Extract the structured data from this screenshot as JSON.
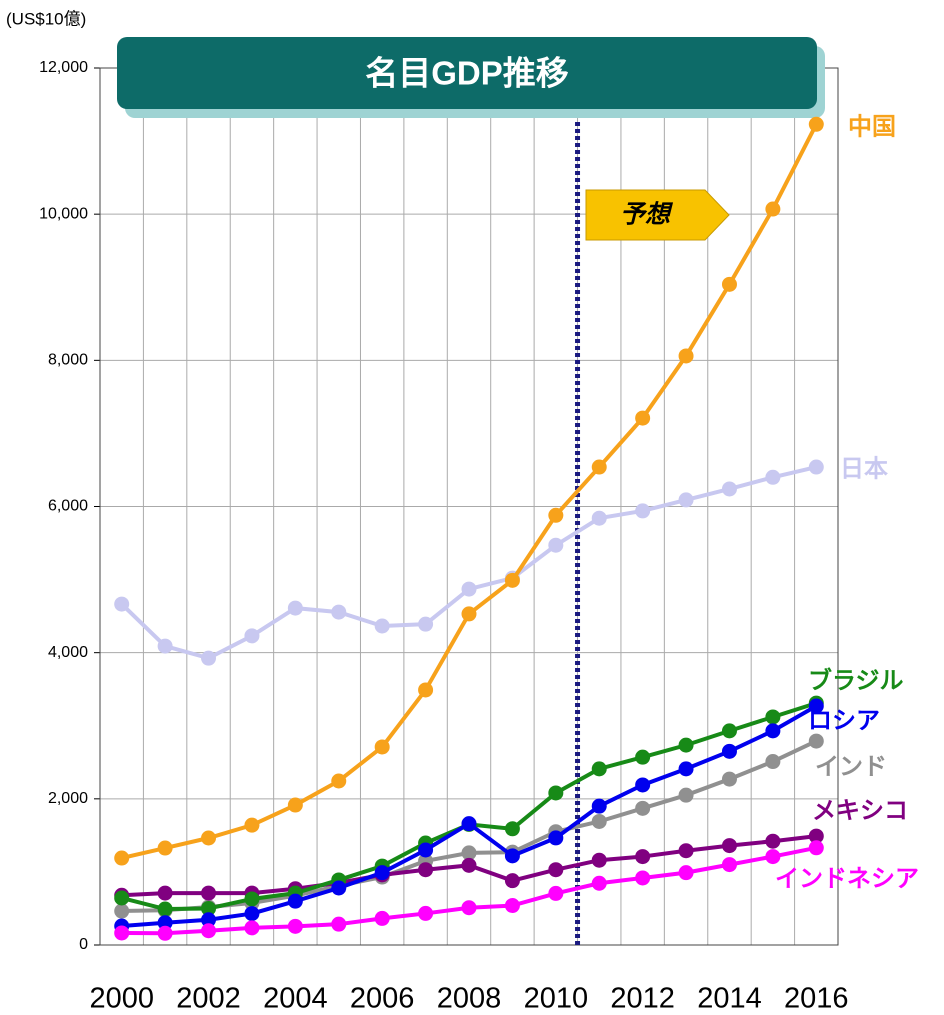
{
  "chart_data": {
    "type": "line",
    "title": "名目GDP推移",
    "y_axis_label": "(US$10億)",
    "annotation": "予想",
    "categories": [
      "2000",
      null,
      "2002",
      null,
      "2004",
      null,
      "2006",
      null,
      "2008",
      null,
      "2010",
      null,
      "2012",
      null,
      "2014",
      null,
      "2016"
    ],
    "series": [
      {
        "name": "日本",
        "color": "#c8c8f0",
        "values": [
          4665,
          4090,
          3925,
          4230,
          4610,
          4555,
          4365,
          4390,
          4870,
          5020,
          5470,
          5840,
          5940,
          6090,
          6240,
          6400,
          6540
        ]
      },
      {
        "name": "中国",
        "color": "#f7a21b",
        "values": [
          1190,
          1327,
          1464,
          1640,
          1915,
          2244,
          2710,
          3490,
          4530,
          4990,
          5880,
          6540,
          7210,
          8060,
          9040,
          10070,
          11230
        ]
      },
      {
        "name": "インド",
        "color": "#909090",
        "values": [
          465,
          475,
          520,
          575,
          675,
          810,
          930,
          1150,
          1260,
          1270,
          1550,
          1690,
          1870,
          2050,
          2270,
          2510,
          2790
        ]
      },
      {
        "name": "メキシコ",
        "color": "#800080",
        "values": [
          680,
          710,
          710,
          710,
          770,
          850,
          960,
          1030,
          1090,
          880,
          1030,
          1160,
          1210,
          1290,
          1360,
          1420,
          1490
        ]
      },
      {
        "name": "ブラジル",
        "color": "#178a17",
        "values": [
          643,
          492,
          500,
          630,
          710,
          890,
          1080,
          1395,
          1650,
          1590,
          2080,
          2410,
          2570,
          2735,
          2930,
          3120,
          3310
        ]
      },
      {
        "name": "ロシア",
        "color": "#0000ee",
        "values": [
          260,
          305,
          345,
          430,
          600,
          780,
          990,
          1300,
          1660,
          1220,
          1465,
          1900,
          2190,
          2410,
          2650,
          2930,
          3270
        ]
      },
      {
        "name": "インドネシア",
        "color": "#ff00ff",
        "values": [
          165,
          160,
          195,
          235,
          255,
          285,
          364,
          432,
          510,
          540,
          706,
          845,
          917,
          990,
          1100,
          1210,
          1330
        ]
      }
    ],
    "ylim": [
      0,
      12000
    ],
    "yticks": [
      0,
      {
        "value": 2000,
        "label": "2,000"
      },
      {
        "value": 4000,
        "label": "4,000"
      },
      {
        "value": 6000,
        "label": "6,000"
      },
      {
        "value": 8000,
        "label": "8,000"
      },
      {
        "value": 10000,
        "label": "10,000"
      },
      {
        "value": 12000,
        "label": "12,000"
      }
    ],
    "grid": true
  }
}
